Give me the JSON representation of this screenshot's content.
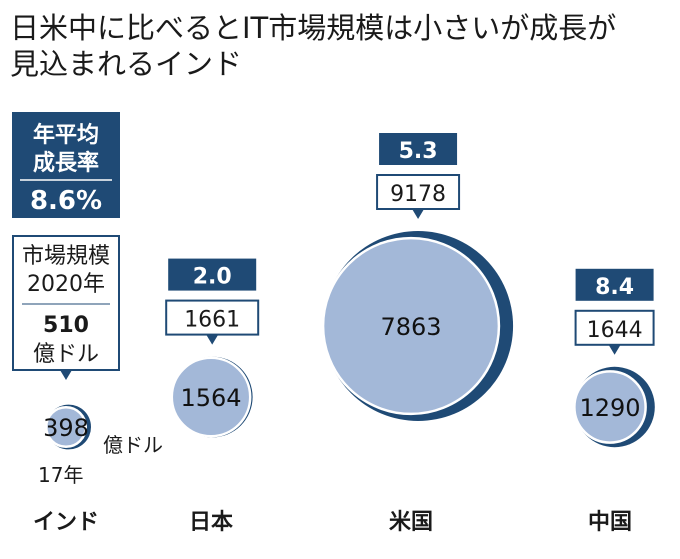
{
  "chart_data": {
    "type": "bubble",
    "title_lines": [
      "日米中に比べるとIT市場規模は小さいが成長が",
      "見込まれるインド"
    ],
    "legend": {
      "rate_label_lines": [
        "年平均",
        "成長率"
      ],
      "rate_value": "8.6%",
      "size_label_lines": [
        "市場規模",
        "2020年"
      ],
      "size_value": "510",
      "size_unit": "億ドル"
    },
    "unit_label": "億ドル",
    "year_label": "17年",
    "categories": [
      "インド",
      "日本",
      "米国",
      "中国"
    ],
    "series": [
      {
        "name": "2017年",
        "values": [
          398,
          1564,
          7863,
          1290
        ]
      },
      {
        "name": "2020年",
        "values": [
          510,
          1661,
          9178,
          1644
        ]
      }
    ],
    "growth_rates": [
      "8.6",
      "2.0",
      "5.3",
      "8.4"
    ],
    "colors": {
      "dark": "#1f4a75",
      "light": "#a3b8d8",
      "ring": "#ffffff"
    }
  }
}
